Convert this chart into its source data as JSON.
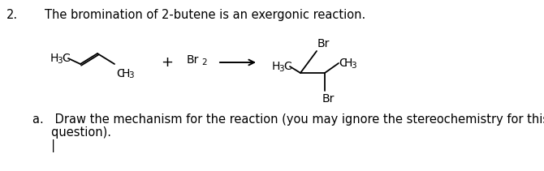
{
  "bg_color": "#ffffff",
  "text_color": "#000000",
  "title_num": "2.",
  "title_text": "The bromination of 2-butene is an exergonic reaction.",
  "qa_line1": "a.   Draw the mechanism for the reaction (you may ignore the stereochemistry for this",
  "qa_line2": "     question).",
  "qa_cursor": "     |",
  "title_fs": 10.5,
  "chem_fs": 10,
  "sub_fs": 7.5,
  "text_fs": 10.5
}
